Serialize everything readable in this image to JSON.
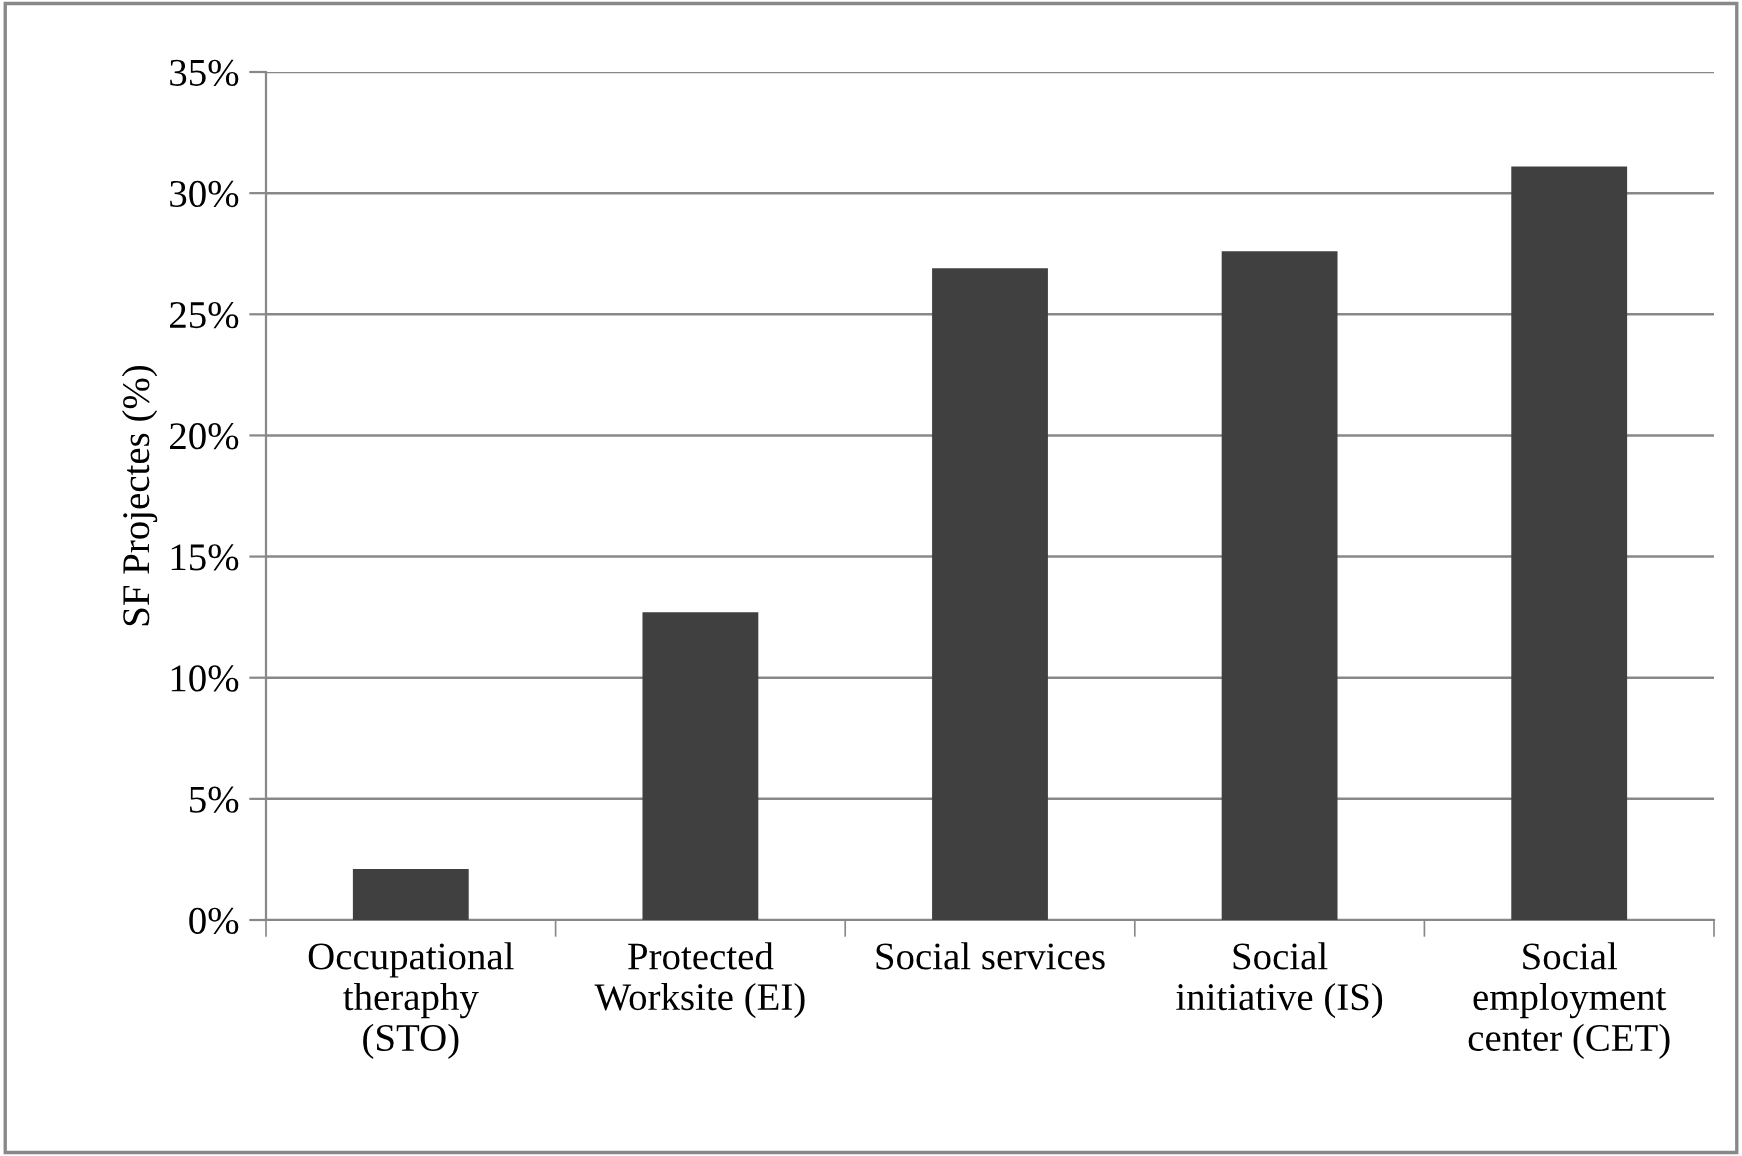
{
  "chart_data": {
    "type": "bar",
    "ylabel": "SF Projectes (%)",
    "categories": [
      "Occupational\ntheraphy\n(STO)",
      "Protected\nWorksite (EI)",
      "Social services",
      "Social\ninitiative (IS)",
      "Social\nemployment\ncenter (CET)"
    ],
    "values": [
      2.1,
      12.7,
      26.9,
      27.6,
      31.1
    ],
    "color": "#404040",
    "ylim": [
      0,
      35
    ],
    "yticks": [
      {
        "value": 0,
        "label": "0%"
      },
      {
        "value": 5,
        "label": "5%"
      },
      {
        "value": 10,
        "label": "10%"
      },
      {
        "value": 15,
        "label": "15%"
      },
      {
        "value": 20,
        "label": "20%"
      },
      {
        "value": 25,
        "label": "25%"
      },
      {
        "value": 30,
        "label": "30%"
      },
      {
        "value": 35,
        "label": "35%"
      }
    ],
    "grid": "y"
  }
}
